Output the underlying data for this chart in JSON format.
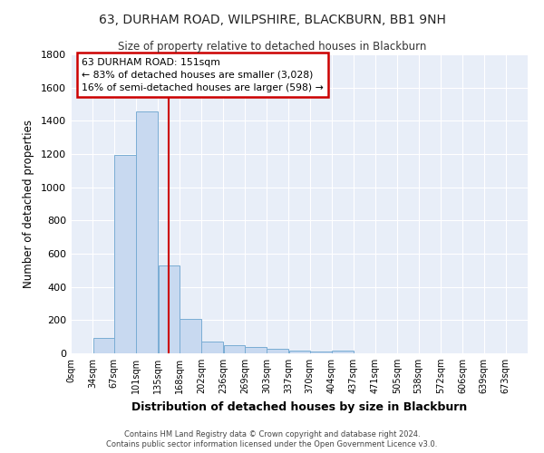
{
  "title": "63, DURHAM ROAD, WILPSHIRE, BLACKBURN, BB1 9NH",
  "subtitle": "Size of property relative to detached houses in Blackburn",
  "xlabel": "Distribution of detached houses by size in Blackburn",
  "ylabel": "Number of detached properties",
  "bar_color": "#c8d9f0",
  "bar_edge_color": "#7aadd4",
  "background_color": "#e8eef8",
  "grid_color": "#ffffff",
  "fig_background": "#ffffff",
  "annotation_box_color": "#cc0000",
  "vline_color": "#cc0000",
  "vline_x": 151,
  "annotation_line1": "63 DURHAM ROAD: 151sqm",
  "annotation_line2": "← 83% of detached houses are smaller (3,028)",
  "annotation_line3": "16% of semi-detached houses are larger (598) →",
  "categories": [
    "0sqm",
    "34sqm",
    "67sqm",
    "101sqm",
    "135sqm",
    "168sqm",
    "202sqm",
    "236sqm",
    "269sqm",
    "303sqm",
    "337sqm",
    "370sqm",
    "404sqm",
    "437sqm",
    "471sqm",
    "505sqm",
    "538sqm",
    "572sqm",
    "606sqm",
    "639sqm",
    "673sqm"
  ],
  "bin_edges": [
    0,
    34,
    67,
    101,
    135,
    168,
    202,
    236,
    269,
    303,
    337,
    370,
    404,
    437,
    471,
    505,
    538,
    572,
    606,
    639,
    673
  ],
  "values": [
    0,
    95,
    1195,
    1455,
    530,
    205,
    70,
    48,
    38,
    27,
    15,
    10,
    18,
    0,
    0,
    0,
    0,
    0,
    0,
    0
  ],
  "ylim": [
    0,
    1800
  ],
  "yticks": [
    0,
    200,
    400,
    600,
    800,
    1000,
    1200,
    1400,
    1600,
    1800
  ],
  "footer_line1": "Contains HM Land Registry data © Crown copyright and database right 2024.",
  "footer_line2": "Contains public sector information licensed under the Open Government Licence v3.0."
}
